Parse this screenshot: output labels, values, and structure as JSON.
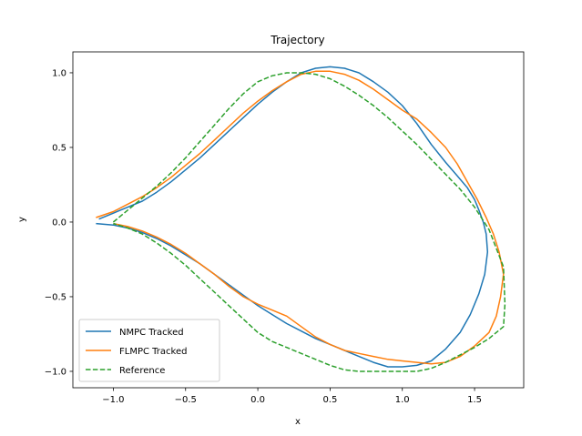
{
  "chart_data": {
    "type": "line",
    "title": "Trajectory",
    "xlabel": "x",
    "ylabel": "y",
    "xlim": [
      -1.28,
      1.84
    ],
    "ylim": [
      -1.11,
      1.14
    ],
    "xticks": [
      -1.0,
      -0.5,
      0.0,
      0.5,
      1.0,
      1.5
    ],
    "xtick_labels": [
      "−1.0",
      "−0.5",
      "0.0",
      "0.5",
      "1.0",
      "1.5"
    ],
    "yticks": [
      -1.0,
      -0.5,
      0.0,
      0.5,
      1.0
    ],
    "ytick_labels": [
      "−1.0",
      "−0.5",
      "0.0",
      "0.5",
      "1.0"
    ],
    "grid": false,
    "legend_position": "lower-left",
    "series": [
      {
        "name": "NMPC Tracked",
        "color": "#1f77b4",
        "dashed": false,
        "x": [
          -1.1,
          -1.05,
          -0.95,
          -0.8,
          -0.7,
          -0.6,
          -0.5,
          -0.4,
          -0.3,
          -0.2,
          -0.1,
          0.0,
          0.1,
          0.2,
          0.3,
          0.4,
          0.5,
          0.6,
          0.7,
          0.8,
          0.9,
          1.0,
          1.1,
          1.2,
          1.3,
          1.38,
          1.45,
          1.5,
          1.53,
          1.56,
          1.58,
          1.59,
          1.57,
          1.53,
          1.47,
          1.4,
          1.3,
          1.2,
          1.1,
          1.0,
          0.9,
          0.8,
          0.7,
          0.6,
          0.5,
          0.4,
          0.3,
          0.2,
          0.1,
          0.0,
          -0.1,
          -0.2,
          -0.3,
          -0.4,
          -0.5,
          -0.6,
          -0.7,
          -0.8,
          -0.9,
          -1.0,
          -1.12
        ],
        "y": [
          0.02,
          0.04,
          0.08,
          0.14,
          0.2,
          0.27,
          0.35,
          0.43,
          0.52,
          0.61,
          0.7,
          0.79,
          0.87,
          0.94,
          1.0,
          1.03,
          1.04,
          1.03,
          1.0,
          0.94,
          0.87,
          0.78,
          0.66,
          0.52,
          0.4,
          0.31,
          0.23,
          0.15,
          0.08,
          0.0,
          -0.08,
          -0.2,
          -0.35,
          -0.48,
          -0.62,
          -0.74,
          -0.85,
          -0.93,
          -0.96,
          -0.97,
          -0.97,
          -0.94,
          -0.9,
          -0.86,
          -0.82,
          -0.78,
          -0.73,
          -0.68,
          -0.62,
          -0.56,
          -0.49,
          -0.42,
          -0.35,
          -0.28,
          -0.22,
          -0.16,
          -0.11,
          -0.07,
          -0.04,
          -0.02,
          -0.01
        ]
      },
      {
        "name": "FLMPC Tracked",
        "color": "#ff7f0e",
        "dashed": false,
        "x": [
          -1.12,
          -1.0,
          -0.9,
          -0.8,
          -0.7,
          -0.6,
          -0.5,
          -0.4,
          -0.3,
          -0.2,
          -0.1,
          0.0,
          0.1,
          0.2,
          0.3,
          0.4,
          0.5,
          0.6,
          0.7,
          0.8,
          0.9,
          1.0,
          1.1,
          1.2,
          1.3,
          1.38,
          1.45,
          1.52,
          1.58,
          1.63,
          1.67,
          1.7,
          1.68,
          1.65,
          1.6,
          1.5,
          1.4,
          1.3,
          1.2,
          1.1,
          1.0,
          0.9,
          0.8,
          0.7,
          0.6,
          0.5,
          0.4,
          0.3,
          0.2,
          0.1,
          0.0,
          -0.1,
          -0.2,
          -0.3,
          -0.4,
          -0.5,
          -0.6,
          -0.7,
          -0.8,
          -0.9,
          -1.0
        ],
        "y": [
          0.03,
          0.07,
          0.12,
          0.17,
          0.23,
          0.3,
          0.38,
          0.46,
          0.55,
          0.64,
          0.73,
          0.81,
          0.88,
          0.94,
          0.99,
          1.01,
          1.01,
          0.99,
          0.95,
          0.89,
          0.82,
          0.75,
          0.69,
          0.6,
          0.5,
          0.39,
          0.27,
          0.15,
          0.03,
          -0.08,
          -0.2,
          -0.35,
          -0.5,
          -0.63,
          -0.74,
          -0.83,
          -0.9,
          -0.94,
          -0.95,
          -0.94,
          -0.93,
          -0.92,
          -0.9,
          -0.88,
          -0.86,
          -0.82,
          -0.77,
          -0.7,
          -0.63,
          -0.59,
          -0.55,
          -0.5,
          -0.43,
          -0.35,
          -0.28,
          -0.21,
          -0.15,
          -0.1,
          -0.06,
          -0.03,
          -0.01
        ]
      },
      {
        "name": "Reference",
        "color": "#2ca02c",
        "dashed": true,
        "x": [
          -1.0,
          -0.9,
          -0.8,
          -0.7,
          -0.6,
          -0.5,
          -0.4,
          -0.3,
          -0.2,
          -0.1,
          0.0,
          0.1,
          0.2,
          0.3,
          0.4,
          0.5,
          0.6,
          0.7,
          0.8,
          0.9,
          1.0,
          1.1,
          1.2,
          1.3,
          1.4,
          1.5,
          1.6,
          1.7,
          1.71,
          1.7,
          1.6,
          1.5,
          1.4,
          1.3,
          1.2,
          1.1,
          1.0,
          0.9,
          0.8,
          0.7,
          0.6,
          0.5,
          0.4,
          0.3,
          0.2,
          0.1,
          0.0,
          -0.1,
          -0.2,
          -0.3,
          -0.4,
          -0.5,
          -0.6,
          -0.7,
          -0.8,
          -0.9,
          -1.0
        ],
        "y": [
          0.0,
          0.08,
          0.16,
          0.24,
          0.33,
          0.43,
          0.54,
          0.65,
          0.76,
          0.86,
          0.94,
          0.98,
          1.0,
          1.0,
          0.99,
          0.96,
          0.91,
          0.85,
          0.78,
          0.7,
          0.61,
          0.52,
          0.42,
          0.32,
          0.22,
          0.1,
          -0.05,
          -0.3,
          -0.55,
          -0.7,
          -0.78,
          -0.84,
          -0.89,
          -0.94,
          -0.98,
          -1.0,
          -1.0,
          -1.0,
          -1.0,
          -1.0,
          -0.99,
          -0.96,
          -0.92,
          -0.88,
          -0.84,
          -0.8,
          -0.74,
          -0.65,
          -0.56,
          -0.47,
          -0.38,
          -0.29,
          -0.21,
          -0.14,
          -0.08,
          -0.04,
          -0.01
        ]
      }
    ]
  }
}
